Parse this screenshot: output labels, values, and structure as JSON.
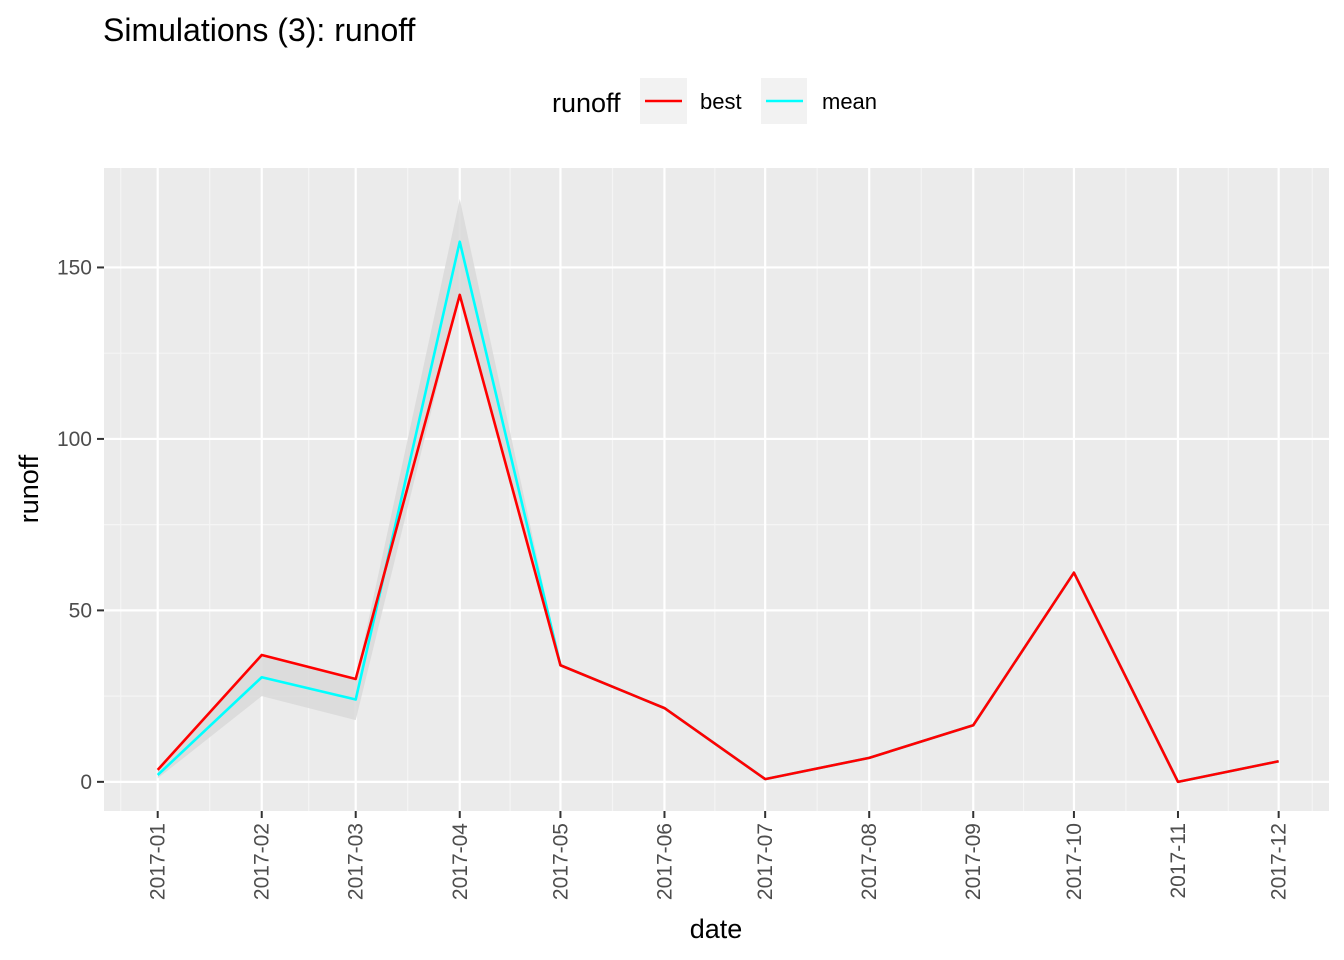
{
  "chart_data": {
    "type": "line",
    "title": "Simulations (3): runoff",
    "xlabel": "date",
    "ylabel": "runoff",
    "x": [
      "2017-01",
      "2017-02",
      "2017-03",
      "2017-04",
      "2017-05",
      "2017-06",
      "2017-07",
      "2017-08",
      "2017-09",
      "2017-10",
      "2017-11",
      "2017-12"
    ],
    "x_days": [
      0,
      31,
      59,
      90,
      120,
      151,
      181,
      212,
      243,
      273,
      304,
      334
    ],
    "xlim_days": [
      -16,
      349
    ],
    "ylim": [
      -8.5,
      179
    ],
    "yticks": [
      0,
      50,
      100,
      150
    ],
    "grid": true,
    "legend": {
      "title": "runoff",
      "position": "top",
      "entries": [
        "best",
        "mean"
      ]
    },
    "series": [
      {
        "name": "best",
        "color": "#ff0000",
        "values": [
          3.5,
          37,
          30,
          142,
          34,
          21.5,
          0.8,
          7,
          16.5,
          61,
          0,
          6
        ]
      },
      {
        "name": "mean",
        "color": "#00ffff",
        "values": [
          2,
          30.5,
          24,
          157.5,
          34,
          21.5,
          0.8,
          7,
          16.5,
          61,
          0,
          6
        ]
      }
    ],
    "band": {
      "color": "#d9d9d9",
      "lower": [
        1,
        25,
        18,
        142,
        34,
        21.5,
        0.8,
        7,
        16.5,
        61,
        0,
        6
      ],
      "upper": [
        3.5,
        37,
        30,
        170,
        34,
        21.5,
        0.8,
        7,
        16.5,
        61,
        0,
        6
      ]
    }
  }
}
